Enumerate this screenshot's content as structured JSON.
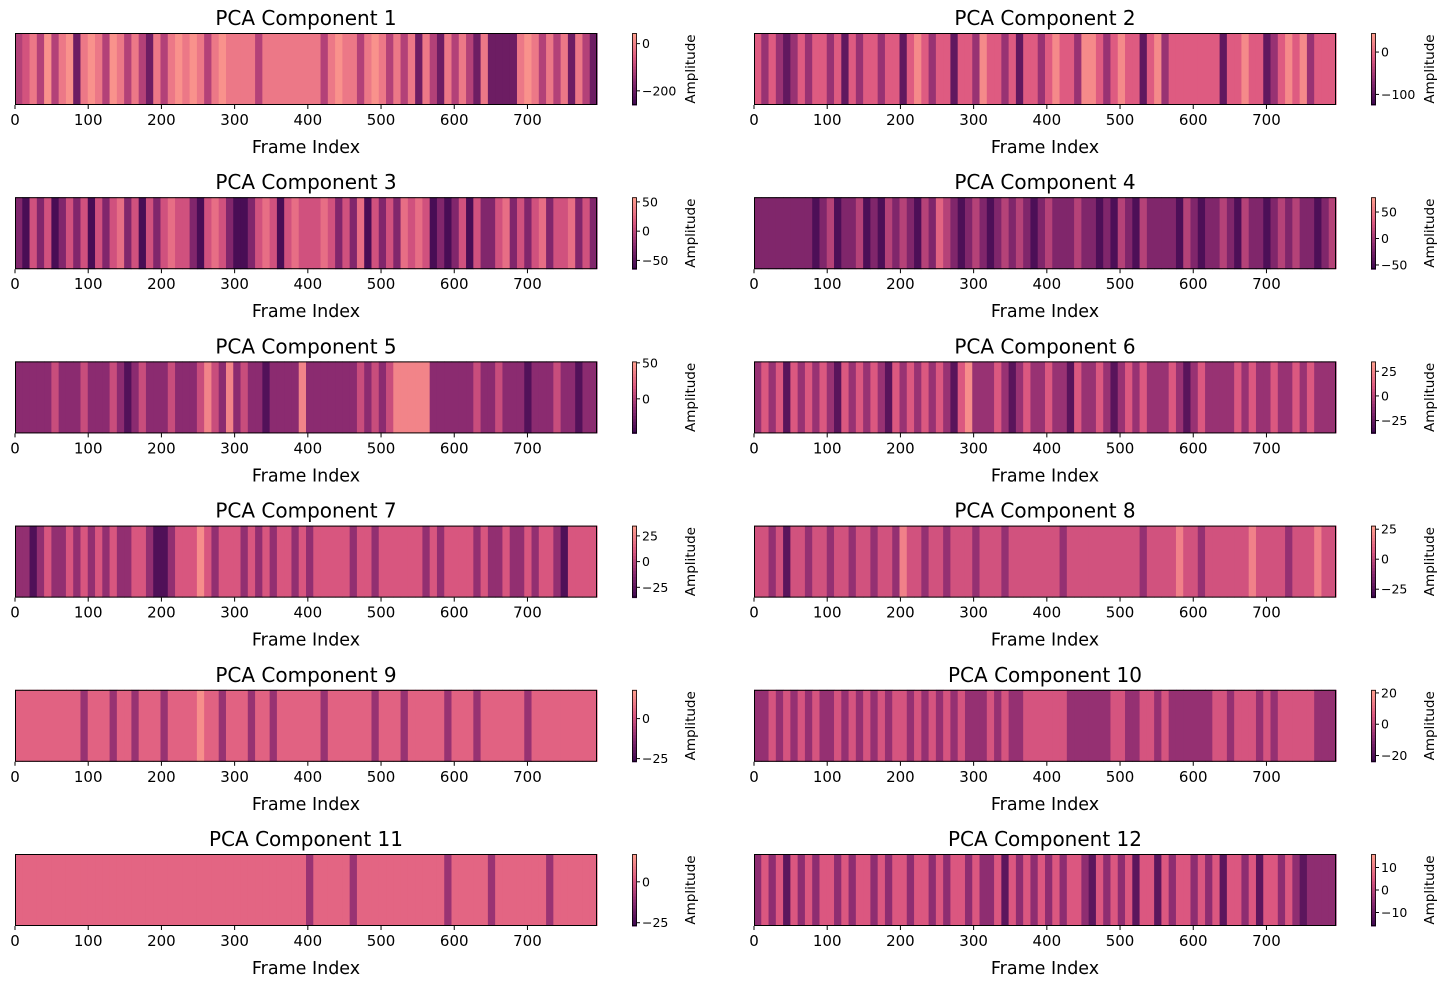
{
  "chart_data": [
    {
      "type": "heatmap",
      "title": "PCA Component 1",
      "xlabel": "Frame Index",
      "colorbar_label": "Amplitude",
      "xlim": [
        0,
        795
      ],
      "xticks": [
        0,
        100,
        200,
        300,
        400,
        500,
        600,
        700
      ],
      "vmin": -260,
      "vmax": 45,
      "colorbar_ticks": [
        -200,
        0
      ],
      "colormap": "magma-like",
      "values": [
        -110,
        -70,
        -10,
        -110,
        30,
        -110,
        -10,
        30,
        -200,
        -10,
        30,
        -10,
        -110,
        30,
        -10,
        -110,
        -10,
        -110,
        -200,
        -10,
        -110,
        -10,
        30,
        -10,
        30,
        -10,
        -110,
        -10,
        30,
        -10,
        -10,
        -10,
        -10,
        -110,
        -10,
        -10,
        -10,
        -10,
        -10,
        -10,
        -10,
        -10,
        -110,
        -10,
        30,
        -10,
        -10,
        -110,
        -10,
        30,
        -10,
        -110,
        -10,
        -110,
        -10,
        -200,
        -10,
        -110,
        -200,
        -10,
        -110,
        -10,
        -110,
        -200,
        -10,
        -200,
        -200,
        -200,
        -200,
        -10,
        30,
        -10,
        -110,
        -10,
        -110,
        -10,
        -200,
        -10,
        -110,
        -200
      ]
    },
    {
      "type": "heatmap",
      "title": "PCA Component 2",
      "xlabel": "Frame Index",
      "colorbar_label": "Amplitude",
      "xlim": [
        0,
        795
      ],
      "xticks": [
        0,
        100,
        200,
        300,
        400,
        500,
        600,
        700
      ],
      "vmin": -125,
      "vmax": 45,
      "colorbar_ticks": [
        -100,
        0
      ],
      "colormap": "magma-like",
      "values": [
        -10,
        -60,
        -10,
        -60,
        -100,
        -60,
        -10,
        -60,
        -10,
        -10,
        -60,
        -10,
        -100,
        -10,
        -60,
        -10,
        -10,
        -60,
        -10,
        -10,
        -100,
        -10,
        30,
        -10,
        -60,
        -10,
        -10,
        -100,
        -10,
        -10,
        -60,
        30,
        -10,
        -10,
        -60,
        -10,
        -100,
        -10,
        -10,
        -60,
        -10,
        30,
        -10,
        -10,
        -60,
        30,
        30,
        -10,
        -60,
        -10,
        30,
        -10,
        -10,
        -100,
        -10,
        30,
        -60,
        -10,
        -10,
        -10,
        -10,
        -10,
        -10,
        -10,
        -100,
        -10,
        -10,
        30,
        -10,
        -10,
        -100,
        -60,
        -10,
        30,
        -10,
        30,
        -60,
        -10,
        -10,
        -10
      ]
    },
    {
      "type": "heatmap",
      "title": "PCA Component 3",
      "xlabel": "Frame Index",
      "colorbar_label": "Amplitude",
      "xlim": [
        0,
        795
      ],
      "xticks": [
        0,
        100,
        200,
        300,
        400,
        500,
        600,
        700
      ],
      "vmin": -65,
      "vmax": 58,
      "colorbar_ticks": [
        -50,
        0,
        50
      ],
      "colormap": "magma-like",
      "values": [
        -30,
        -60,
        10,
        -30,
        10,
        -60,
        -30,
        10,
        -30,
        10,
        -60,
        10,
        -30,
        10,
        30,
        -30,
        10,
        -60,
        10,
        -30,
        10,
        30,
        10,
        10,
        -30,
        -60,
        10,
        30,
        10,
        -30,
        -60,
        -60,
        -30,
        10,
        30,
        10,
        -60,
        10,
        30,
        10,
        10,
        10,
        30,
        10,
        -30,
        10,
        -30,
        30,
        -60,
        10,
        -30,
        10,
        -30,
        30,
        10,
        30,
        10,
        -60,
        -30,
        -60,
        -30,
        10,
        -60,
        10,
        -30,
        -30,
        10,
        30,
        -30,
        10,
        -30,
        10,
        30,
        -30,
        10,
        10,
        30,
        -30,
        10,
        -30
      ]
    },
    {
      "type": "heatmap",
      "title": "PCA Component 4",
      "xlabel": "Frame Index",
      "colorbar_label": "Amplitude",
      "xlim": [
        0,
        795
      ],
      "xticks": [
        0,
        100,
        200,
        300,
        400,
        500,
        600,
        700
      ],
      "vmin": -58,
      "vmax": 78,
      "colorbar_ticks": [
        -50,
        0,
        50
      ],
      "colormap": "magma-like",
      "values": [
        -20,
        -20,
        -20,
        -20,
        -20,
        -20,
        -20,
        -20,
        -50,
        -20,
        10,
        -50,
        -20,
        -20,
        10,
        -50,
        -20,
        -50,
        10,
        -20,
        10,
        -20,
        -50,
        10,
        -20,
        40,
        10,
        -20,
        -50,
        -20,
        10,
        -20,
        -50,
        -20,
        10,
        -20,
        10,
        -20,
        -50,
        -20,
        10,
        -20,
        -20,
        -20,
        10,
        -20,
        -20,
        -50,
        -20,
        -50,
        10,
        -20,
        -50,
        10,
        -20,
        -20,
        -20,
        -20,
        -50,
        10,
        -20,
        -50,
        -20,
        -20,
        10,
        -20,
        -50,
        10,
        -20,
        -20,
        -50,
        -20,
        10,
        -20,
        10,
        -20,
        -20,
        -50,
        -20,
        10
      ]
    },
    {
      "type": "heatmap",
      "title": "PCA Component 5",
      "xlabel": "Frame Index",
      "colorbar_label": "Amplitude",
      "xlim": [
        0,
        795
      ],
      "xticks": [
        0,
        100,
        200,
        300,
        400,
        500,
        600,
        700
      ],
      "vmin": -48,
      "vmax": 52,
      "colorbar_ticks": [
        0,
        50
      ],
      "colormap": "magma-like",
      "values": [
        -15,
        -15,
        -15,
        -15,
        -15,
        10,
        -15,
        -15,
        -15,
        10,
        -15,
        -15,
        -15,
        10,
        -15,
        -40,
        -15,
        10,
        -15,
        -15,
        -15,
        10,
        -15,
        -15,
        -15,
        10,
        40,
        10,
        -15,
        40,
        -15,
        10,
        -15,
        -15,
        -40,
        -15,
        -15,
        -15,
        -15,
        40,
        -15,
        -15,
        -15,
        -15,
        -15,
        -15,
        -15,
        10,
        -15,
        10,
        -15,
        10,
        40,
        40,
        40,
        40,
        40,
        -15,
        -15,
        -15,
        -15,
        -15,
        -15,
        10,
        -15,
        -15,
        10,
        -15,
        -15,
        -15,
        -40,
        -15,
        -15,
        -15,
        10,
        -15,
        -15,
        -40,
        -15,
        -15
      ]
    },
    {
      "type": "heatmap",
      "title": "PCA Component 6",
      "xlabel": "Frame Index",
      "colorbar_label": "Amplitude",
      "xlim": [
        0,
        795
      ],
      "xticks": [
        0,
        100,
        200,
        300,
        400,
        500,
        600,
        700
      ],
      "vmin": -38,
      "vmax": 35,
      "colorbar_ticks": [
        -25,
        0,
        25
      ],
      "colormap": "magma-like",
      "values": [
        -10,
        10,
        -10,
        10,
        -30,
        10,
        -10,
        10,
        -10,
        10,
        -10,
        -30,
        10,
        -10,
        10,
        -10,
        10,
        -10,
        -30,
        10,
        -10,
        10,
        -10,
        10,
        -10,
        10,
        -10,
        -30,
        10,
        30,
        -10,
        -10,
        -10,
        10,
        -10,
        -30,
        -10,
        10,
        -10,
        -10,
        10,
        -10,
        -10,
        -30,
        10,
        -10,
        -10,
        10,
        -10,
        -30,
        -10,
        10,
        -10,
        10,
        -10,
        -10,
        -10,
        10,
        -10,
        -30,
        -10,
        10,
        -10,
        -10,
        -10,
        -10,
        10,
        -10,
        10,
        -10,
        -10,
        10,
        -10,
        -10,
        10,
        -10,
        10,
        -10,
        -10,
        -10
      ]
    },
    {
      "type": "heatmap",
      "title": "PCA Component 7",
      "xlabel": "Frame Index",
      "colorbar_label": "Amplitude",
      "xlim": [
        0,
        795
      ],
      "xticks": [
        0,
        100,
        200,
        300,
        400,
        500,
        600,
        700
      ],
      "vmin": -35,
      "vmax": 35,
      "colorbar_ticks": [
        -25,
        0,
        25
      ],
      "colormap": "magma-like",
      "values": [
        -10,
        -10,
        -30,
        -10,
        10,
        -10,
        -10,
        10,
        -10,
        10,
        -10,
        10,
        -10,
        10,
        -10,
        -10,
        10,
        10,
        -10,
        -30,
        -30,
        -10,
        10,
        10,
        10,
        30,
        10,
        -10,
        10,
        10,
        10,
        -10,
        10,
        -10,
        10,
        -10,
        10,
        10,
        -10,
        10,
        -10,
        10,
        10,
        10,
        10,
        10,
        -10,
        10,
        10,
        -10,
        10,
        10,
        10,
        10,
        10,
        10,
        -10,
        10,
        -10,
        10,
        10,
        10,
        10,
        -10,
        10,
        -10,
        -10,
        10,
        -10,
        -10,
        10,
        -10,
        10,
        10,
        -10,
        -30,
        10,
        10,
        10,
        10
      ]
    },
    {
      "type": "heatmap",
      "title": "PCA Component 8",
      "xlabel": "Frame Index",
      "colorbar_label": "Amplitude",
      "xlim": [
        0,
        795
      ],
      "xticks": [
        0,
        100,
        200,
        300,
        400,
        500,
        600,
        700
      ],
      "vmin": -32,
      "vmax": 28,
      "colorbar_ticks": [
        -25,
        0,
        25
      ],
      "colormap": "magma-like",
      "values": [
        5,
        5,
        -10,
        5,
        -25,
        5,
        5,
        -10,
        5,
        5,
        -10,
        5,
        5,
        -10,
        5,
        5,
        -10,
        5,
        5,
        -10,
        20,
        5,
        5,
        -10,
        5,
        5,
        -10,
        5,
        5,
        5,
        -10,
        5,
        5,
        5,
        -10,
        5,
        5,
        5,
        5,
        5,
        5,
        5,
        -10,
        5,
        5,
        5,
        5,
        5,
        5,
        5,
        5,
        5,
        5,
        -10,
        5,
        5,
        5,
        5,
        20,
        5,
        5,
        -10,
        5,
        5,
        5,
        5,
        5,
        5,
        20,
        5,
        5,
        5,
        5,
        -10,
        5,
        5,
        5,
        20,
        5,
        5
      ]
    },
    {
      "type": "heatmap",
      "title": "PCA Component 9",
      "xlabel": "Frame Index",
      "colorbar_label": "Amplitude",
      "xlim": [
        0,
        795
      ],
      "xticks": [
        0,
        100,
        200,
        300,
        400,
        500,
        600,
        700
      ],
      "vmin": -27,
      "vmax": 18,
      "colorbar_ticks": [
        -25,
        0
      ],
      "colormap": "magma-like",
      "values": [
        5,
        5,
        5,
        5,
        5,
        5,
        5,
        5,
        5,
        -10,
        5,
        5,
        5,
        -10,
        5,
        5,
        -10,
        5,
        5,
        5,
        -10,
        5,
        5,
        5,
        5,
        15,
        5,
        5,
        -10,
        5,
        5,
        5,
        -10,
        5,
        5,
        -10,
        5,
        5,
        5,
        5,
        5,
        5,
        -10,
        5,
        5,
        5,
        5,
        5,
        5,
        -10,
        5,
        5,
        5,
        -10,
        5,
        5,
        5,
        5,
        5,
        -10,
        5,
        5,
        5,
        -10,
        5,
        5,
        5,
        5,
        5,
        5,
        -10,
        5,
        5,
        5,
        5,
        5,
        5,
        5,
        5,
        5
      ]
    },
    {
      "type": "heatmap",
      "title": "PCA Component 10",
      "xlabel": "Frame Index",
      "colorbar_label": "Amplitude",
      "xlim": [
        0,
        795
      ],
      "xticks": [
        0,
        100,
        200,
        300,
        400,
        500,
        600,
        700
      ],
      "vmin": -24,
      "vmax": 22,
      "colorbar_ticks": [
        -20,
        0,
        20
      ],
      "colormap": "magma-like",
      "values": [
        -7,
        -7,
        5,
        -7,
        5,
        -7,
        5,
        -7,
        5,
        -7,
        -7,
        5,
        -7,
        5,
        -7,
        5,
        -7,
        5,
        -7,
        5,
        5,
        -7,
        5,
        -7,
        5,
        -7,
        5,
        -7,
        5,
        -7,
        -7,
        -7,
        5,
        -7,
        5,
        -7,
        -7,
        5,
        5,
        5,
        5,
        5,
        5,
        -7,
        -7,
        -7,
        -7,
        -7,
        -7,
        5,
        5,
        -7,
        -7,
        5,
        5,
        -7,
        5,
        -7,
        -7,
        -7,
        -7,
        -7,
        -7,
        5,
        5,
        -7,
        5,
        5,
        5,
        -7,
        5,
        -7,
        5,
        5,
        5,
        5,
        5,
        -7,
        -7,
        -7
      ]
    },
    {
      "type": "heatmap",
      "title": "PCA Component 11",
      "xlabel": "Frame Index",
      "colorbar_label": "Amplitude",
      "xlim": [
        0,
        795
      ],
      "xticks": [
        0,
        100,
        200,
        300,
        400,
        500,
        600,
        700
      ],
      "vmin": -27,
      "vmax": 17,
      "colorbar_ticks": [
        -25,
        0
      ],
      "colormap": "magma-like",
      "values": [
        5,
        5,
        5,
        5,
        5,
        5,
        5,
        5,
        5,
        5,
        5,
        5,
        5,
        5,
        5,
        5,
        5,
        5,
        5,
        5,
        5,
        5,
        5,
        5,
        5,
        5,
        5,
        5,
        5,
        5,
        5,
        5,
        5,
        5,
        5,
        5,
        5,
        5,
        5,
        5,
        -10,
        5,
        5,
        5,
        5,
        5,
        -10,
        5,
        5,
        5,
        5,
        5,
        5,
        5,
        5,
        5,
        5,
        5,
        5,
        -10,
        5,
        5,
        5,
        5,
        5,
        -10,
        5,
        5,
        5,
        5,
        5,
        5,
        5,
        -10,
        5,
        5,
        5,
        5,
        5,
        5
      ]
    },
    {
      "type": "heatmap",
      "title": "PCA Component 12",
      "xlabel": "Frame Index",
      "colorbar_label": "Amplitude",
      "xlim": [
        0,
        795
      ],
      "xticks": [
        0,
        100,
        200,
        300,
        400,
        500,
        600,
        700
      ],
      "vmin": -16,
      "vmax": 16,
      "colorbar_ticks": [
        -10,
        0,
        10
      ],
      "colormap": "magma-like",
      "values": [
        -5,
        5,
        -5,
        5,
        -12,
        5,
        -5,
        5,
        -5,
        5,
        5,
        -5,
        5,
        -5,
        5,
        5,
        -5,
        5,
        -5,
        5,
        5,
        -5,
        5,
        5,
        -5,
        5,
        -5,
        5,
        5,
        -5,
        5,
        -5,
        -5,
        5,
        -12,
        5,
        -5,
        5,
        -5,
        5,
        -5,
        5,
        -5,
        5,
        5,
        -5,
        -12,
        5,
        -5,
        5,
        -5,
        5,
        -12,
        5,
        5,
        -12,
        5,
        -5,
        5,
        5,
        -5,
        5,
        -5,
        5,
        -12,
        5,
        5,
        -5,
        5,
        -12,
        5,
        5,
        -5,
        5,
        -5,
        -12,
        -5,
        -5,
        -5,
        -5
      ]
    }
  ]
}
